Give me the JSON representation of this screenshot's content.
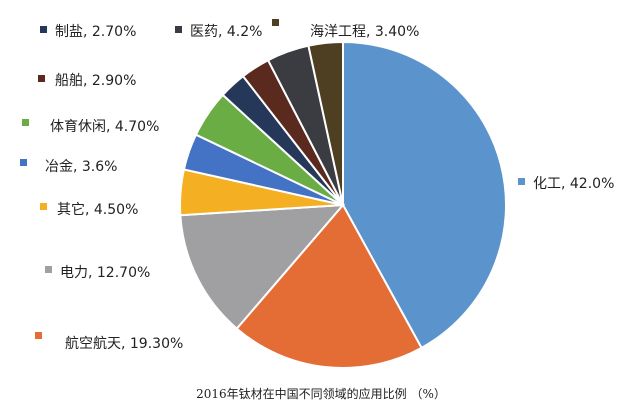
{
  "chart_data": {
    "type": "pie",
    "title": "2016年钛材在中国不同领域的应用比例 （%）",
    "slices": [
      {
        "name": "化工",
        "value": 42.0,
        "label": "化工, 42.0%",
        "color": "#5b93cc"
      },
      {
        "name": "航空航天",
        "value": 19.3,
        "label": "航空航天, 19.30%",
        "color": "#e46c35"
      },
      {
        "name": "电力",
        "value": 12.7,
        "label": "电力, 12.70%",
        "color": "#a0a0a3"
      },
      {
        "name": "其它",
        "value": 4.5,
        "label": "其它, 4.50%",
        "color": "#f4b022"
      },
      {
        "name": "冶金",
        "value": 3.6,
        "label": "冶金, 3.6%",
        "color": "#4472c4"
      },
      {
        "name": "体育休闲",
        "value": 4.7,
        "label": "体育休闲, 4.70%",
        "color": "#6aad45"
      },
      {
        "name": "制盐",
        "value": 2.7,
        "label": "制盐, 2.70%",
        "color": "#263859"
      },
      {
        "name": "船舶",
        "value": 2.9,
        "label": "船舶, 2.90%",
        "color": "#5a2a1e"
      },
      {
        "name": "医药",
        "value": 4.2,
        "label": "医药, 4.2%",
        "color": "#3a3c41"
      },
      {
        "name": "海洋工程",
        "value": 3.4,
        "label": "海洋工程, 3.40%",
        "color": "#4e3f22"
      }
    ]
  }
}
